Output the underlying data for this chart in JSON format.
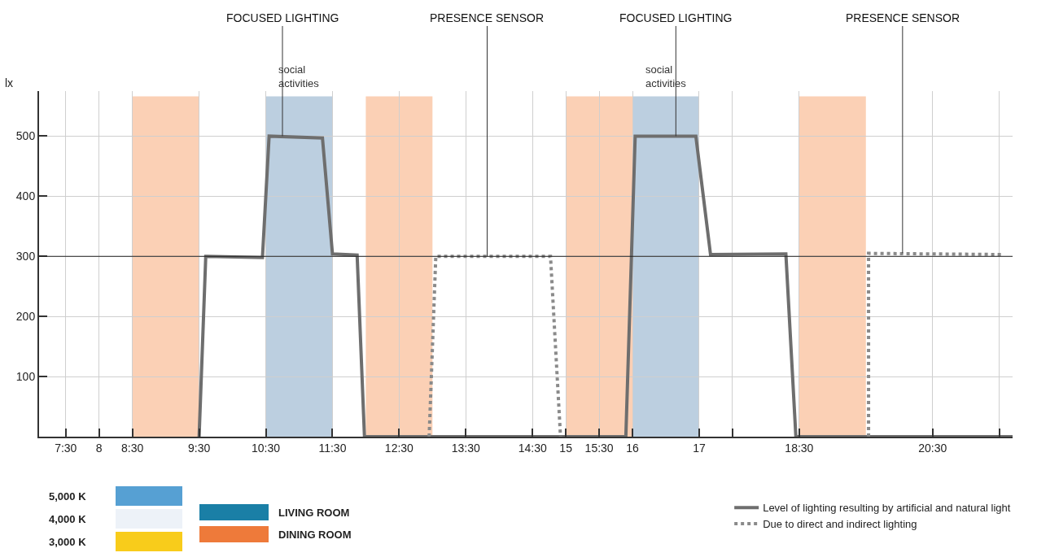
{
  "chart_data": {
    "type": "line",
    "ylabel": "lx",
    "xlim": [
      7.1,
      21.7
    ],
    "ylim": [
      0,
      575
    ],
    "xticks": [
      {
        "value": 7.5,
        "label": "7:30"
      },
      {
        "value": 8,
        "label": "8"
      },
      {
        "value": 8.5,
        "label": "8:30"
      },
      {
        "value": 9.5,
        "label": "9:30"
      },
      {
        "value": 10.5,
        "label": "10:30"
      },
      {
        "value": 11.5,
        "label": "11:30"
      },
      {
        "value": 12.5,
        "label": "12:30"
      },
      {
        "value": 13.5,
        "label": "13:30"
      },
      {
        "value": 14.5,
        "label": "14:30"
      },
      {
        "value": 15,
        "label": "15"
      },
      {
        "value": 15.5,
        "label": "15:30"
      },
      {
        "value": 16,
        "label": "16"
      },
      {
        "value": 17,
        "label": "17"
      },
      {
        "value": 17.5,
        "label": null
      },
      {
        "value": 18.5,
        "label": "18:30"
      },
      {
        "value": 20.5,
        "label": "20:30"
      },
      {
        "value": 21.5,
        "label": null
      }
    ],
    "yticks": [
      100,
      200,
      300,
      400,
      500
    ],
    "grid": true,
    "legend": "bottom right",
    "marker": "none",
    "series": [
      {
        "name": "Level of lighting resulting by artificial and natural light",
        "color": "#6e6e6e",
        "line_style": "solid",
        "x": [
          9.5,
          9.6,
          10.45,
          10.55,
          11.35,
          11.5,
          11.87,
          11.98,
          15.9,
          16.04,
          16.95,
          17.17,
          18.3,
          18.45,
          21.7
        ],
        "values": [
          0,
          300,
          298,
          500,
          497,
          304,
          302,
          0,
          0,
          500,
          500,
          303,
          304,
          0,
          0
        ]
      },
      {
        "name": "Due to direct and indirect lighting",
        "color": "#8a8a8a",
        "line_style": "dotted",
        "x": [
          12.95,
          13.05,
          14.77,
          14.92,
          null,
          19.54,
          19.54,
          21.56
        ],
        "values": [
          0,
          300,
          300,
          0,
          null,
          0,
          305,
          303
        ]
      }
    ],
    "bands": [
      {
        "axis": "x",
        "from": 8.5,
        "to": 9.5,
        "color": "#fbd0b5"
      },
      {
        "axis": "x",
        "from": 10.5,
        "to": 11.5,
        "color": "#bccfe0",
        "label": "social activities"
      },
      {
        "axis": "x",
        "from": 12,
        "to": 13,
        "color": "#fbd0b5"
      },
      {
        "axis": "x",
        "from": 15,
        "to": 16,
        "color": "#fbd0b5"
      },
      {
        "axis": "x",
        "from": 16,
        "to": 17,
        "color": "#bccfe0",
        "label": "social activities"
      },
      {
        "axis": "x",
        "from": 18.5,
        "to": 19.5,
        "color": "#fbd0b5"
      }
    ],
    "ref_lines": [
      {
        "axis": "y",
        "value": 300,
        "color": "#222222",
        "line_style": "solid"
      }
    ],
    "annotations": [
      {
        "text": "FOCUSED LIGHTING",
        "x": 10.75,
        "y": 500
      },
      {
        "text": "PRESENCE SENSOR",
        "x": 13.82,
        "y": 300
      },
      {
        "text": "FOCUSED LIGHTING",
        "x": 16.65,
        "y": 500
      },
      {
        "text": "PRESENCE SENSOR",
        "x": 20.05,
        "y": 305
      },
      "5,000 K",
      "4,000 K",
      "3,000 K",
      "LIVING ROOM",
      "DINING ROOM"
    ]
  }
}
